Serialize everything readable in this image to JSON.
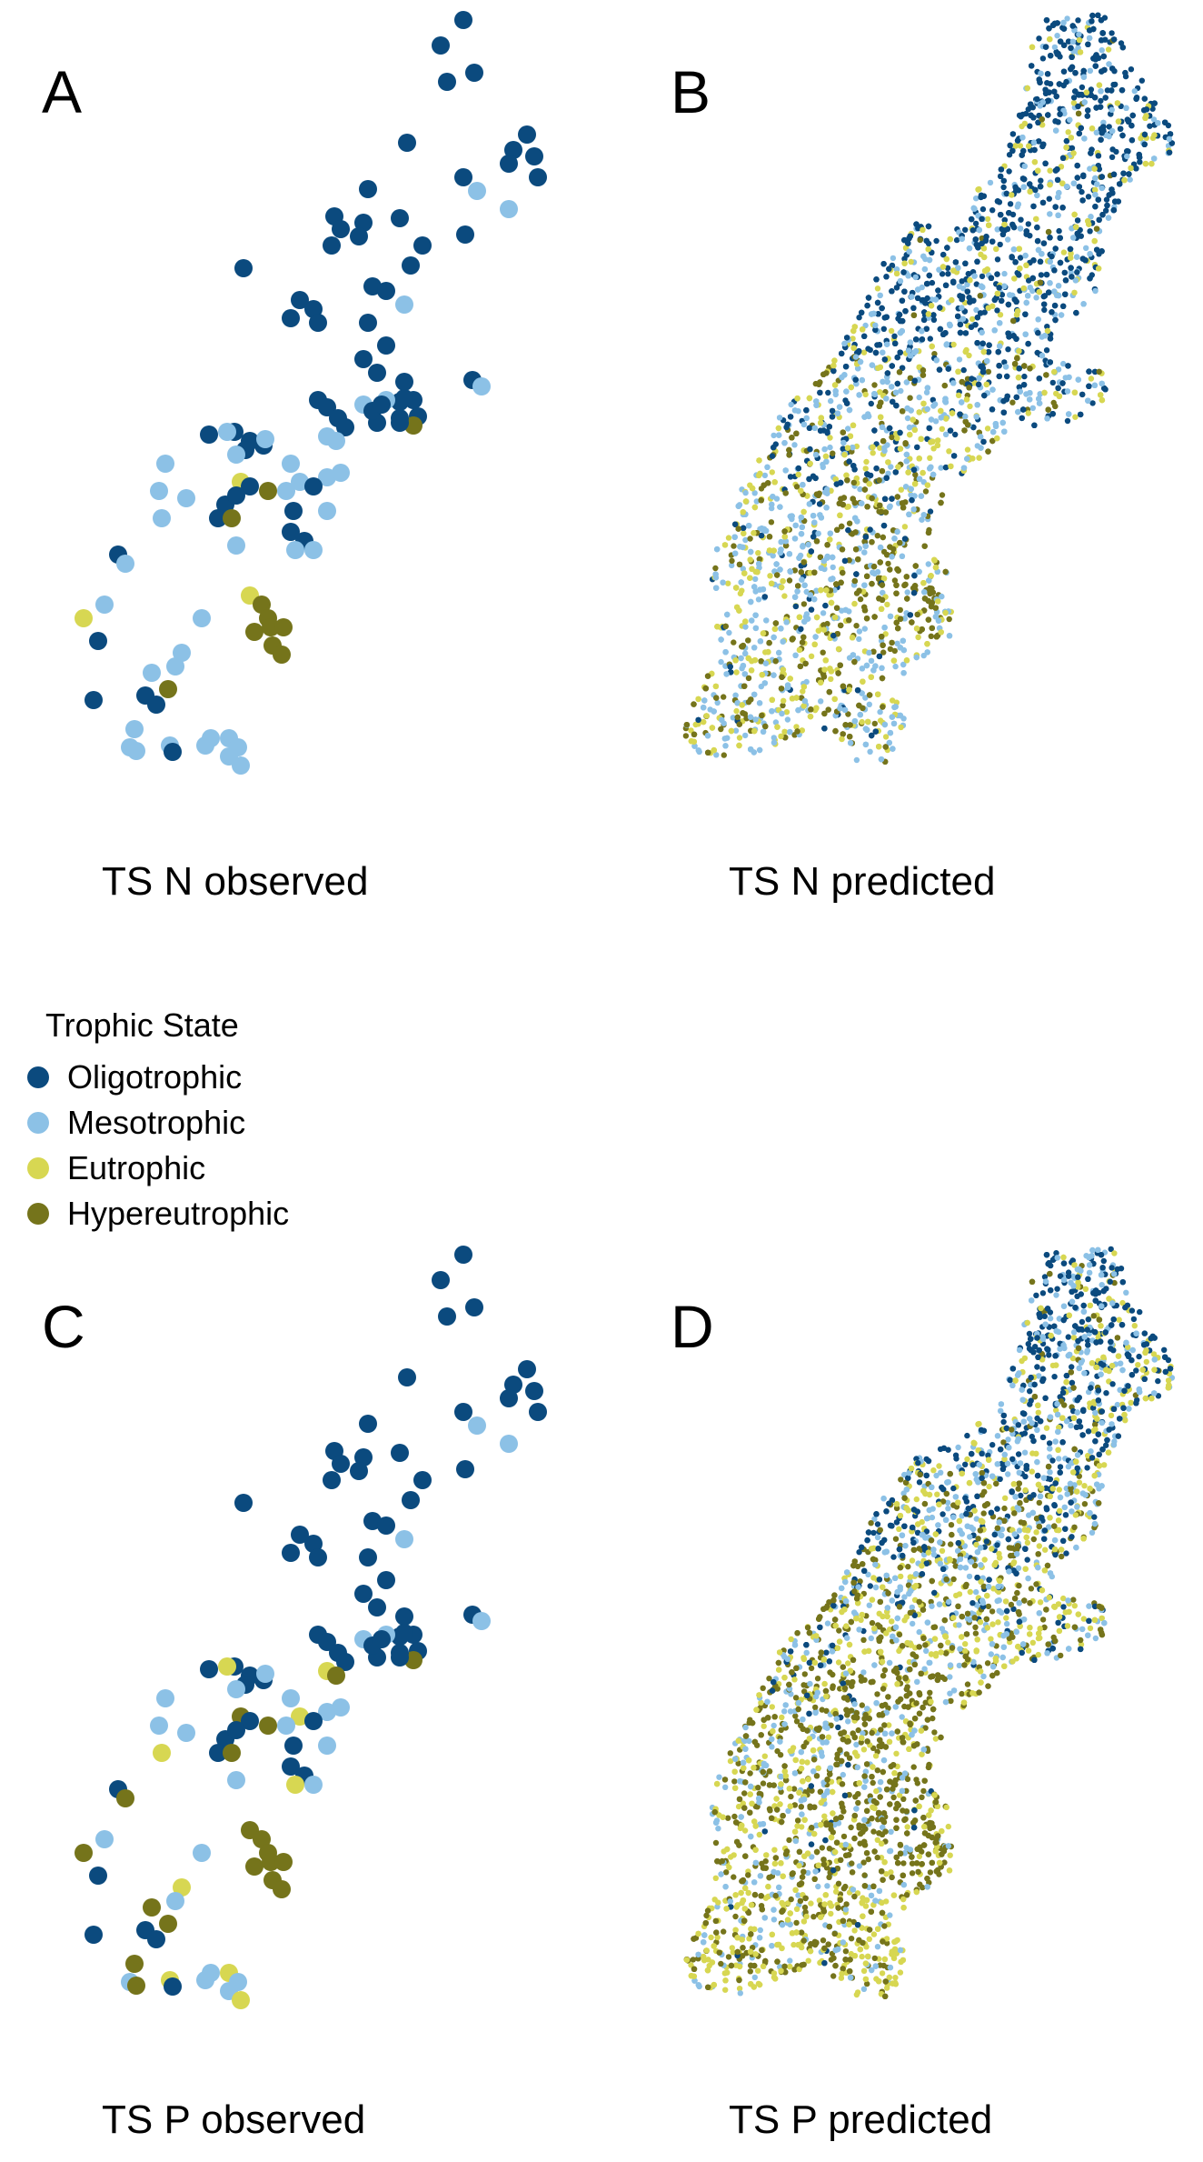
{
  "colors": {
    "oligotrophic": "#0b4a7e",
    "mesotrophic": "#8cc1e6",
    "eutrophic": "#d7d752",
    "hypereutrophic": "#75741b"
  },
  "legend": {
    "title": "Trophic State",
    "items": [
      {
        "label": "Oligotrophic",
        "color": "#0b4a7e"
      },
      {
        "label": "Mesotrophic",
        "color": "#8cc1e6"
      },
      {
        "label": "Eutrophic",
        "color": "#d7d752"
      },
      {
        "label": "Hypereutrophic",
        "color": "#75741b"
      }
    ]
  },
  "panels": [
    {
      "letter": "A",
      "caption": "TS N observed",
      "kind": "observed",
      "variant": "N"
    },
    {
      "letter": "B",
      "caption": "TS N predicted",
      "kind": "predicted",
      "variant": "N"
    },
    {
      "letter": "C",
      "caption": "TS P observed",
      "kind": "observed",
      "variant": "P"
    },
    {
      "letter": "D",
      "caption": "TS P predicted",
      "kind": "predicted",
      "variant": "P"
    }
  ]
}
